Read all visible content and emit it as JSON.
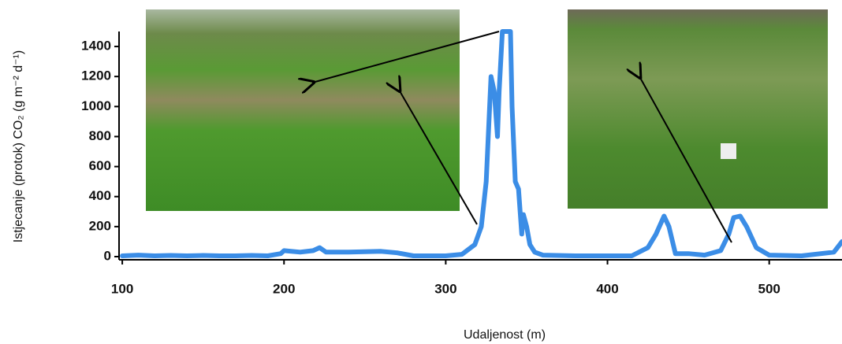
{
  "chart_data": {
    "type": "line",
    "xlabel": "Udaljenost (m)",
    "ylabel": "Istjecanje (protok) CO₂ (g m⁻² d⁻¹)",
    "xlim": [
      98,
      545
    ],
    "xticks": [
      100,
      200,
      300,
      400,
      500
    ],
    "ylim": [
      0,
      1500
    ],
    "yticks": [
      0,
      200,
      400,
      600,
      800,
      1000,
      1200,
      1400
    ],
    "series": [
      {
        "color": "#3b8de6",
        "x": [
          100,
          110,
          120,
          130,
          140,
          150,
          160,
          170,
          180,
          190,
          198,
          200,
          210,
          218,
          222,
          226,
          240,
          260,
          270,
          280,
          300,
          310,
          318,
          322,
          325,
          328,
          330,
          332,
          333,
          335,
          338,
          340,
          341,
          343,
          345,
          347,
          348,
          350,
          352,
          355,
          360,
          380,
          400,
          415,
          425,
          430,
          435,
          438,
          442,
          450,
          460,
          470,
          475,
          478,
          482,
          486,
          492,
          500,
          520,
          540,
          545
        ],
        "values": [
          5,
          10,
          5,
          8,
          5,
          8,
          5,
          5,
          8,
          5,
          20,
          40,
          30,
          40,
          60,
          30,
          30,
          35,
          25,
          5,
          5,
          15,
          80,
          200,
          500,
          1200,
          1100,
          800,
          1100,
          1500,
          1500,
          1500,
          1000,
          500,
          450,
          150,
          280,
          200,
          80,
          30,
          10,
          5,
          5,
          5,
          60,
          150,
          270,
          200,
          20,
          20,
          10,
          40,
          150,
          260,
          270,
          200,
          60,
          10,
          5,
          30,
          100
        ]
      }
    ]
  }
}
